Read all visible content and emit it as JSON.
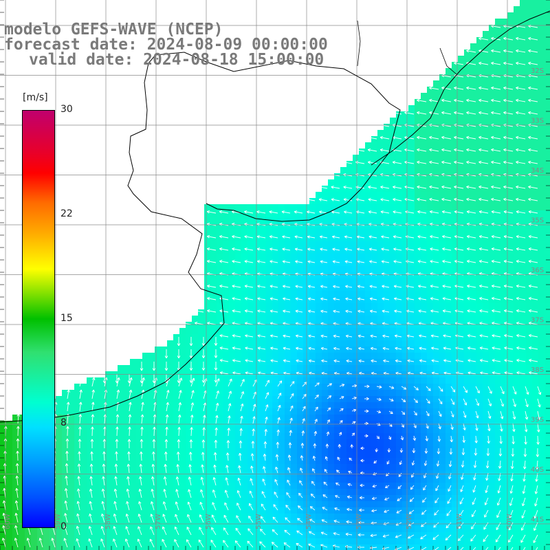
{
  "header": {
    "model_line": "modelo GEFS-WAVE (NCEP)",
    "forecast_line": "forecast date: 2024-08-09 00:00:00",
    "valid_line": "valid date: 2024-08-18 15:00:00"
  },
  "colorbar": {
    "unit": "[m/s]",
    "ticks": [
      "30",
      "22",
      "15",
      "8",
      "0"
    ],
    "tick_values": [
      30,
      22,
      15,
      8,
      0
    ]
  },
  "map": {
    "lat_labels": [
      "32S",
      "33S",
      "34S",
      "35S",
      "36S",
      "37S",
      "38S",
      "39S",
      "40S",
      "41S"
    ],
    "lon_labels": [
      "60W",
      "59W",
      "58W",
      "57W",
      "56W",
      "55W",
      "54W",
      "53W",
      "52W",
      "51W",
      "50W"
    ],
    "colors": {
      "land": "#ffffff",
      "coastline": "#000000",
      "grid": "#8a8a8a",
      "arrows": "#ffffff",
      "title": "#7a7a7a"
    }
  }
}
